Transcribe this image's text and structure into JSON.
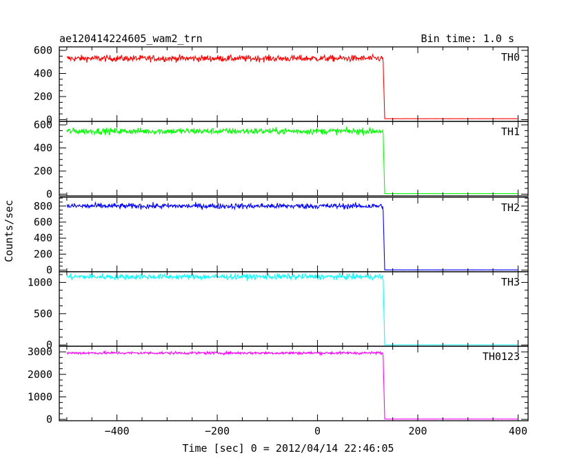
{
  "chart_data": {
    "type": "line",
    "title": "ae120414224605_wam2_trn",
    "subtitle": "Bin time: 1.0 s",
    "xlabel": "Time [sec] 0 = 2012/04/14 22:46:05",
    "ylabel": "Counts/sec",
    "xlim": [
      -515,
      420
    ],
    "x_ticks": [
      -400,
      -200,
      0,
      200,
      400
    ],
    "x_tick_labels": [
      "−400",
      "−200",
      "0",
      "200",
      "400"
    ],
    "x_data_range": [
      -500,
      400
    ],
    "drop_time": 134,
    "series": [
      {
        "name": "TH0",
        "color": "#ff0000",
        "level": 530,
        "noise": 28,
        "ylim": [
          -15,
          630
        ],
        "yticks": [
          0,
          200,
          400,
          600
        ],
        "post_level": 8
      },
      {
        "name": "TH1",
        "color": "#00ff00",
        "level": 545,
        "noise": 28,
        "ylim": [
          -15,
          630
        ],
        "yticks": [
          0,
          200,
          400,
          600
        ],
        "post_level": 5
      },
      {
        "name": "TH2",
        "color": "#0000ff",
        "level": 800,
        "noise": 35,
        "ylim": [
          -20,
          910
        ],
        "yticks": [
          0,
          200,
          400,
          600,
          800
        ],
        "post_level": 3
      },
      {
        "name": "TH3",
        "color": "#00ffff",
        "level": 1090,
        "noise": 45,
        "ylim": [
          -20,
          1170
        ],
        "yticks": [
          0,
          500,
          1000
        ],
        "post_level": 2
      },
      {
        "name": "TH0123",
        "color": "#ff00ff",
        "level": 2950,
        "noise": 60,
        "ylim": [
          -60,
          3250
        ],
        "yticks": [
          0,
          1000,
          2000,
          3000
        ],
        "post_level": 15
      }
    ]
  }
}
